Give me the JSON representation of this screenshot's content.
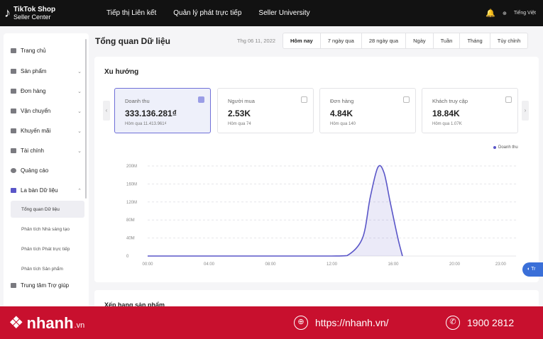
{
  "topbar": {
    "logo_brand": "TikTok Shop",
    "logo_sub": "Seller Center",
    "nav": [
      "Tiếp thị Liên kết",
      "Quản lý phát trực tiếp",
      "Seller University"
    ],
    "language": "Tiếng Việt"
  },
  "sidebar": {
    "items": [
      {
        "label": "Trang chủ"
      },
      {
        "label": "Sản phẩm"
      },
      {
        "label": "Đơn hàng"
      },
      {
        "label": "Vận chuyển"
      },
      {
        "label": "Khuyến mãi"
      },
      {
        "label": "Tài chính"
      },
      {
        "label": "Quảng cáo"
      },
      {
        "label": "La bàn Dữ liệu"
      },
      {
        "label": "Trung tâm Trợ giúp"
      }
    ],
    "subitems": [
      "Tổng quan Dữ liệu",
      "Phân tích Nhà sáng tạo",
      "Phân tích Phát trực tiếp",
      "Phân tích Sản phẩm"
    ]
  },
  "header": {
    "title": "Tổng quan Dữ liệu",
    "date": "Thg 06 11, 2022",
    "ranges": [
      "Hôm nay",
      "7 ngày qua",
      "28 ngày qua",
      "Ngày",
      "Tuần",
      "Tháng",
      "Tùy chỉnh"
    ]
  },
  "trend": {
    "title": "Xu hướng",
    "metrics": [
      {
        "label": "Doanh thu",
        "value": "333.136.281₫",
        "compare": "Hôm qua 11.413.961₫"
      },
      {
        "label": "Người mua",
        "value": "2.53K",
        "compare": "Hôm qua 74"
      },
      {
        "label": "Đơn hàng",
        "value": "4.84K",
        "compare": "Hôm qua 140"
      },
      {
        "label": "Khách truy cập",
        "value": "18.84K",
        "compare": "Hôm qua 1.07K"
      }
    ],
    "legend": "Doanh thu"
  },
  "chart_data": {
    "type": "line",
    "y_ticks": [
      "200M",
      "160M",
      "120M",
      "80M",
      "40M",
      "0"
    ],
    "x_ticks": [
      "00:00",
      "04:00",
      "08:00",
      "12:00",
      "16:00",
      "20:00",
      "23:00"
    ],
    "ylim": [
      0,
      200
    ],
    "series": [
      {
        "name": "Doanh thu",
        "x": [
          0,
          4,
          8,
          12,
          13,
          14,
          14.5,
          15,
          15.4,
          15.8,
          16.3,
          16.6
        ],
        "y": [
          0,
          0,
          0,
          0,
          1,
          40,
          130,
          197,
          185,
          120,
          40,
          0
        ]
      }
    ],
    "color": "#5a56c8"
  },
  "section2": {
    "title": "Xếp hạng sản phẩm"
  },
  "float_button": "Tr",
  "banner": {
    "brand": "nhanh",
    "tld": ".vn",
    "website": "https://nhanh.vn/",
    "phone": "1900 2812"
  }
}
